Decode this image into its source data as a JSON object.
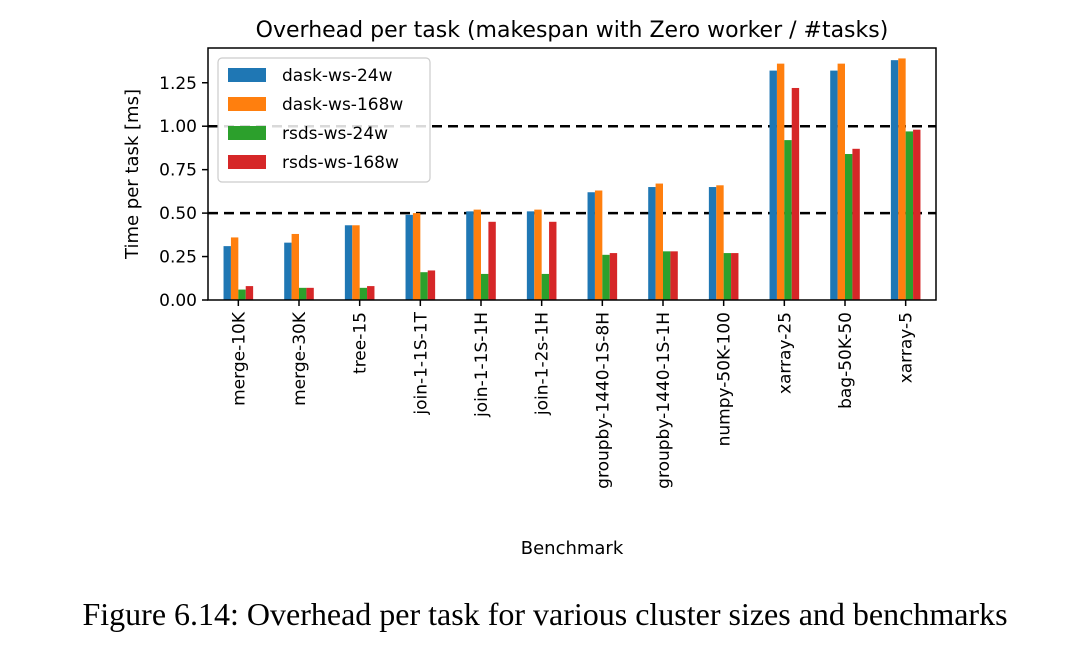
{
  "chart_data": {
    "type": "bar",
    "title": "Overhead per task (makespan with Zero worker / #tasks)",
    "xlabel": "Benchmark",
    "ylabel": "Time per task [ms]",
    "ylim": [
      0,
      1.45
    ],
    "yticks": [
      "0.00",
      "0.25",
      "0.50",
      "0.75",
      "1.00",
      "1.25"
    ],
    "ytick_values": [
      0,
      0.25,
      0.5,
      0.75,
      1.0,
      1.25
    ],
    "reference_lines": [
      0.5,
      1.0
    ],
    "legend_position": "top-left",
    "categories": [
      "merge-10K",
      "merge-30K",
      "tree-15",
      "join-1-1S-1T",
      "join-1-1S-1H",
      "join-1-2s-1H",
      "groupby-1440-1S-8H",
      "groupby-1440-1S-1H",
      "numpy-50K-100",
      "xarray-25",
      "bag-50K-50",
      "xarray-5"
    ],
    "series": [
      {
        "name": "dask-ws-24w",
        "color": "#1f77b4",
        "values": [
          0.31,
          0.33,
          0.43,
          0.49,
          0.51,
          0.51,
          0.62,
          0.65,
          0.65,
          1.32,
          1.32,
          1.38
        ]
      },
      {
        "name": "dask-ws-168w",
        "color": "#ff7f0e",
        "values": [
          0.36,
          0.38,
          0.43,
          0.5,
          0.52,
          0.52,
          0.63,
          0.67,
          0.66,
          1.36,
          1.36,
          1.39
        ]
      },
      {
        "name": "rsds-ws-24w",
        "color": "#2ca02c",
        "values": [
          0.06,
          0.07,
          0.07,
          0.16,
          0.15,
          0.15,
          0.26,
          0.28,
          0.27,
          0.92,
          0.84,
          0.97
        ]
      },
      {
        "name": "rsds-ws-168w",
        "color": "#d62728",
        "values": [
          0.08,
          0.07,
          0.08,
          0.17,
          0.45,
          0.45,
          0.27,
          0.28,
          0.27,
          1.22,
          0.87,
          0.98
        ]
      }
    ]
  },
  "caption": "Figure 6.14: Overhead per task for various cluster sizes and benchmarks"
}
